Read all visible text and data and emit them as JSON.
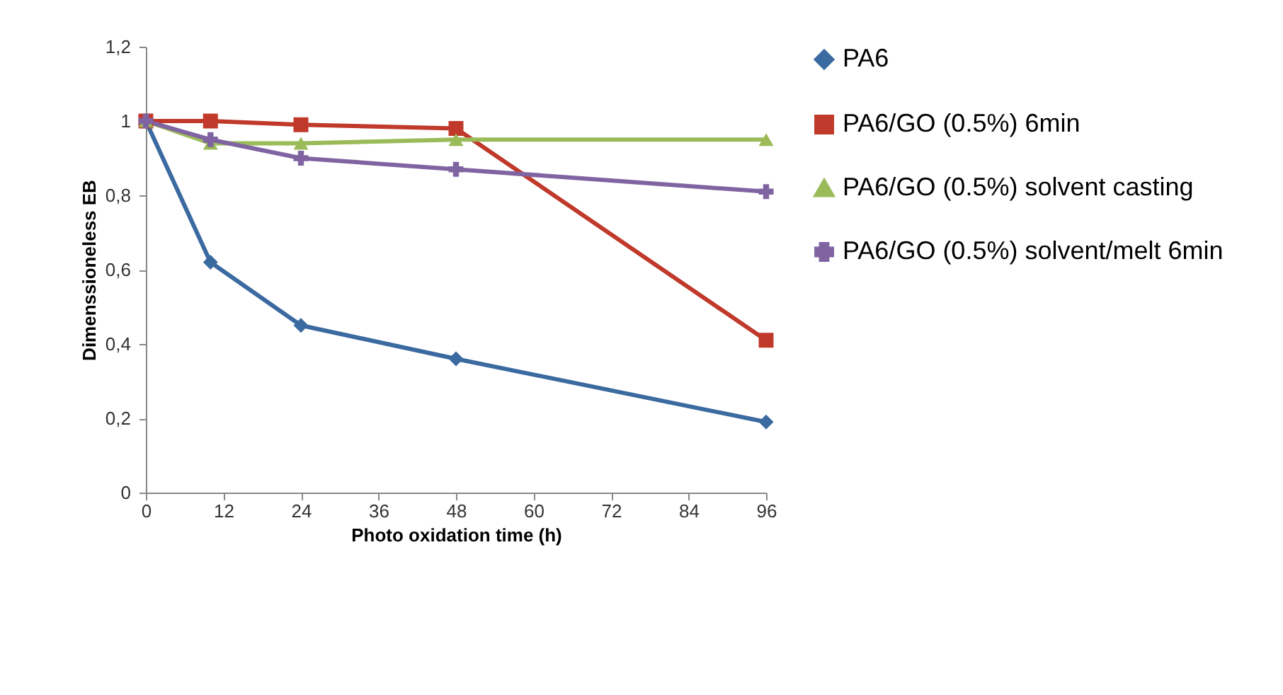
{
  "chart_data": {
    "type": "line",
    "xlabel": "Photo oxidation time (h)",
    "ylabel": "Dimenssioneless EB",
    "x": [
      0,
      10,
      24,
      48,
      96
    ],
    "xlim": [
      0,
      96
    ],
    "xticks": [
      0,
      12,
      24,
      36,
      48,
      60,
      72,
      84,
      96
    ],
    "ylim": [
      0,
      1.2
    ],
    "yticks": [
      0,
      {
        "value": 0.2,
        "label": "0,2"
      },
      {
        "value": 0.4,
        "label": "0,4"
      },
      {
        "value": 0.6,
        "label": "0,6"
      },
      {
        "value": 0.8,
        "label": "0,8"
      },
      1,
      {
        "value": 1.2,
        "label": "1,2"
      }
    ],
    "grid": false,
    "legend": "right",
    "series": [
      {
        "name": "PA6",
        "color": "#3b6aa0",
        "marker": "diamond",
        "values": [
          1,
          0.62,
          0.45,
          0.36,
          0.19
        ]
      },
      {
        "name": "PA6/GO (0.5%) 6min",
        "color": "#c0392b",
        "marker": "square",
        "values": [
          1,
          1,
          0.99,
          0.98,
          0.41
        ]
      },
      {
        "name": "PA6/GO (0.5%) solvent casting",
        "color": "#9bbb59",
        "marker": "triangle",
        "values": [
          1,
          0.94,
          0.94,
          0.95,
          0.95
        ]
      },
      {
        "name": "PA6/GO (0.5%) solvent/melt 6min",
        "color": "#8064a2",
        "marker": "cross",
        "values": [
          1,
          0.95,
          0.9,
          0.87,
          0.81
        ]
      }
    ]
  }
}
